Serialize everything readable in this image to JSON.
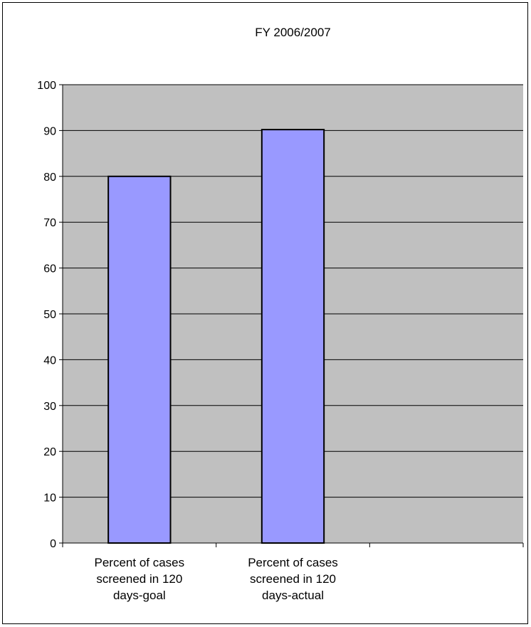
{
  "colors": {
    "plot_background": "#c0c0c0",
    "bar_fill": "#9999ff",
    "bar_stroke": "#000000",
    "gridline": "#000000",
    "axis": "#000000"
  },
  "chart_data": {
    "type": "bar",
    "title": "FY 2006/2007",
    "xlabel": "",
    "ylabel": "",
    "categories": [
      [
        "Percent of cases",
        "screened in 120",
        "days-goal"
      ],
      [
        "Percent of cases",
        "screened in 120",
        "days-actual"
      ],
      [
        ""
      ]
    ],
    "values": [
      80,
      90.2,
      null
    ],
    "ylim": [
      0,
      100
    ],
    "yticks": [
      "0",
      "10",
      "20",
      "30",
      "40",
      "50",
      "60",
      "70",
      "80",
      "90",
      "100"
    ],
    "grid": true,
    "legend": "none"
  }
}
